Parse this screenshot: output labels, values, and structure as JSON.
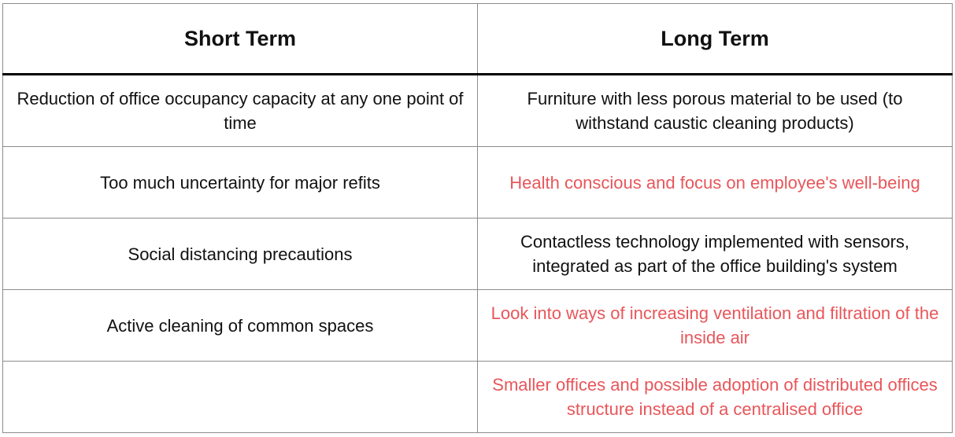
{
  "table": {
    "headers": [
      "Short Term",
      "Long Term"
    ],
    "rows": [
      {
        "short": "Reduction of office occupancy capacity at any one point of time",
        "long": "Furniture with less porous material to be used (to withstand caustic cleaning products)",
        "long_highlighted": false
      },
      {
        "short": "Too much uncertainty for major refits",
        "long": "Health conscious and focus on employee's well-being",
        "long_highlighted": true
      },
      {
        "short": "Social distancing precautions",
        "long": "Contactless technology implemented with sensors, integrated as part of the office building's system",
        "long_highlighted": false
      },
      {
        "short": "Active cleaning of common spaces",
        "long": "Look into ways of increasing ventilation and filtration of the inside air",
        "long_highlighted": true
      },
      {
        "short": "",
        "long": "Smaller offices and possible adoption of distributed offices structure instead of a centralised office",
        "long_highlighted": true
      }
    ]
  },
  "colors": {
    "text": "#111111",
    "highlight": "#e8565a",
    "border": "#8c8c8c",
    "header_rule": "#000000"
  }
}
